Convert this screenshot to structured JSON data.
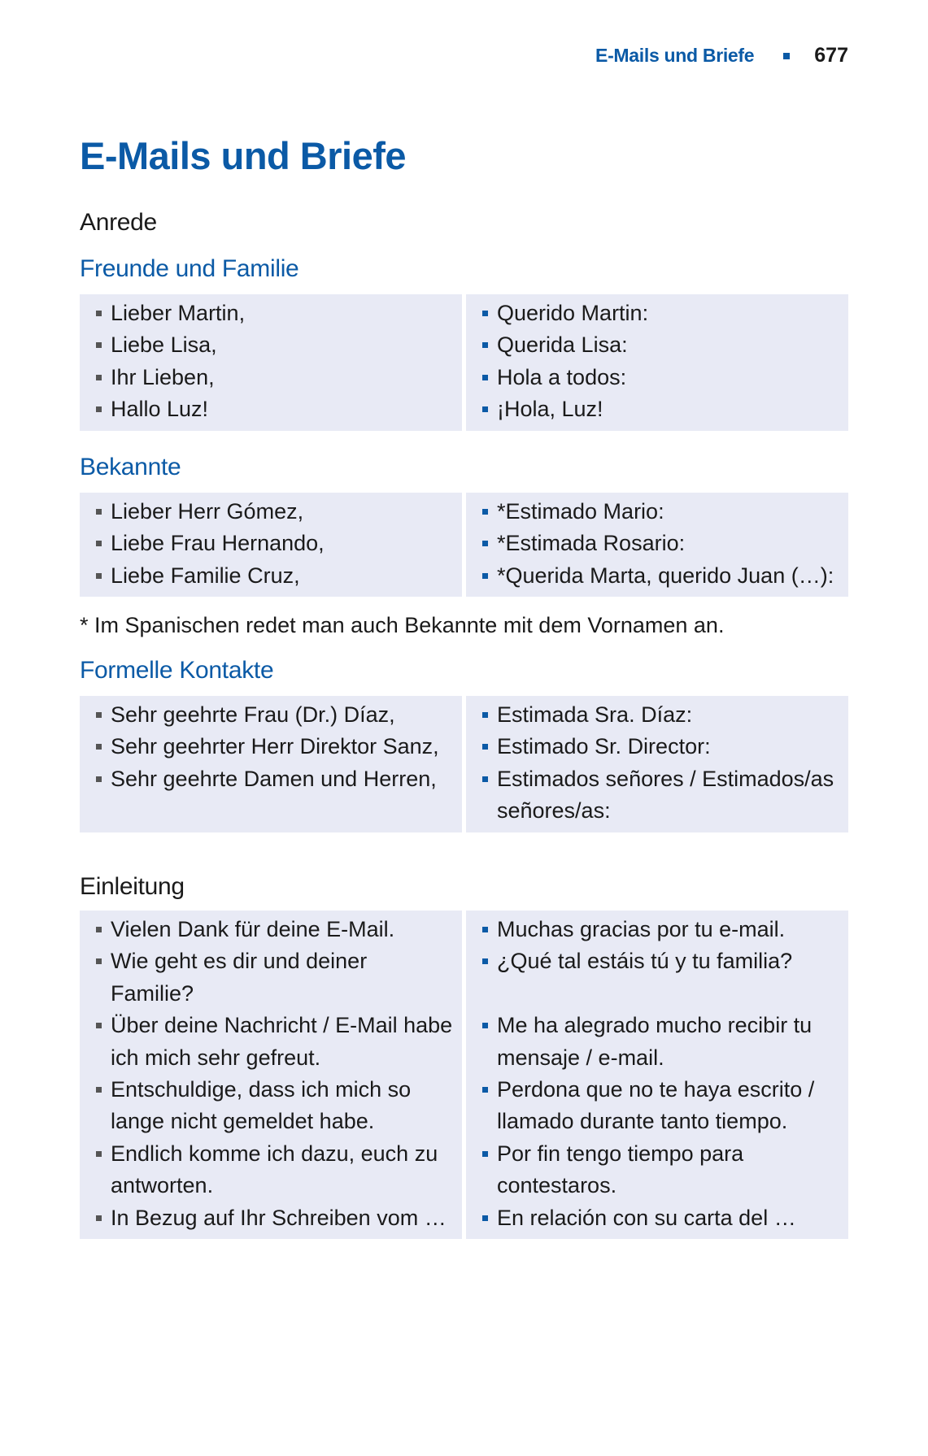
{
  "header": {
    "section": "E-Mails und Briefe",
    "page": "677"
  },
  "title": "E-Mails und Briefe",
  "anrede": {
    "heading": "Anrede",
    "groups": [
      {
        "heading": "Freunde und Familie",
        "rows": [
          [
            "Lieber Martin,",
            "Querido Martin:"
          ],
          [
            "Liebe Lisa,",
            "Querida Lisa:"
          ],
          [
            "Ihr Lieben,",
            "Hola a todos:"
          ],
          [
            "Hallo Luz!",
            "¡Hola, Luz!"
          ]
        ]
      },
      {
        "heading": "Bekannte",
        "rows": [
          [
            "Lieber Herr Gómez,",
            "*Estimado Mario:"
          ],
          [
            "Liebe Frau Hernando,",
            "*Estimada Rosario:"
          ],
          [
            "Liebe Familie Cruz,",
            "*Querida Marta, querido Juan (…):"
          ]
        ]
      },
      {
        "heading": "Formelle Kontakte",
        "rows": [
          [
            "Sehr geehrte Frau (Dr.) Díaz,",
            "Estimada Sra. Díaz:"
          ],
          [
            "Sehr geehrter Herr Direktor Sanz,",
            "Estimado Sr. Director:"
          ],
          [
            "Sehr geehrte Damen und Herren,",
            "Estimados señores / Estimados/as señores/as:"
          ]
        ]
      }
    ],
    "footnote": "* Im Spanischen redet man auch Bekannte mit dem Vornamen an."
  },
  "einleitung": {
    "heading": "Einleitung",
    "rows": [
      [
        "Vielen Dank für deine E-Mail.",
        "Muchas gracias por tu e-mail."
      ],
      [
        "Wie geht es dir und deiner Familie?",
        "¿Qué tal estáis tú y tu familia?"
      ],
      [
        "Über deine Nachricht / E-Mail habe ich mich sehr gefreut.",
        "Me ha alegrado mucho recibir tu mensaje / e-mail."
      ],
      [
        "Entschuldige, dass ich mich so lange nicht gemeldet habe.",
        "Perdona que no te haya escrito / llamado durante tanto tiempo."
      ],
      [
        "Endlich komme ich dazu, euch zu antworten.",
        "Por fin tengo tiempo para contestaros."
      ],
      [
        "In Bezug auf Ihr Schreiben vom …",
        "En relación con su carta del …"
      ]
    ]
  },
  "colors": {
    "accent": "#0b5aa6",
    "box": "#e8eaf5"
  }
}
